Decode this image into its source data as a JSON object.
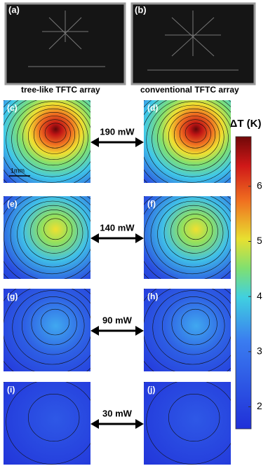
{
  "panels": [
    {
      "label": "(a)",
      "caption": "tree-like TFTC array"
    },
    {
      "label": "(b)",
      "caption": "conventional TFTC array"
    }
  ],
  "maps": [
    {
      "left": "(c)",
      "right": "(d)",
      "power": "190 mW",
      "scale_bar": "1mm"
    },
    {
      "left": "(e)",
      "right": "(f)",
      "power": "140 mW"
    },
    {
      "left": "(g)",
      "right": "(h)",
      "power": "90 mW"
    },
    {
      "left": "(i)",
      "right": "(j)",
      "power": "30 mW"
    }
  ],
  "colorbar": {
    "title": "ΔT (K)",
    "lim": [
      1.6,
      6.9
    ],
    "ticks": [
      2,
      3,
      4,
      5,
      6
    ]
  }
}
